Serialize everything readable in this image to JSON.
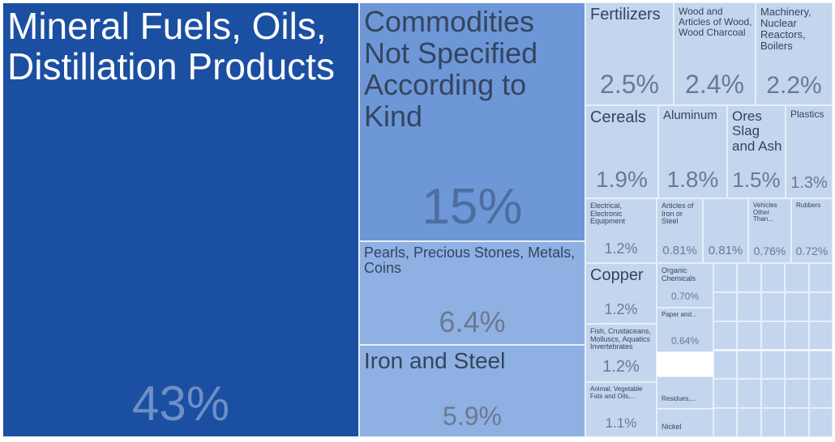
{
  "chart_data": {
    "type": "treemap",
    "categories": [
      "Mineral Fuels, Oils, Distillation Products",
      "Commodities Not Specified According to Kind",
      "Pearls, Precious Stones, Metals, Coins",
      "Iron and Steel",
      "Fertilizers",
      "Wood and Articles of Wood, Wood Charcoal",
      "Machinery, Nuclear Reactors, Boilers",
      "Cereals",
      "Aluminum",
      "Ores Slag and Ash",
      "Plastics",
      "Electrical, Electronic Equipment",
      "Articles of Iron or Steel",
      null,
      "Vehicles Other Than...",
      "Rubbers",
      "Copper",
      "Organic Chemicals",
      "Fish, Crustaceans, Molluscs, Aquatics Invertebrates",
      "Paper and...",
      "Animal, Vegetable Fats and Oils,...",
      "Residues,...",
      "Nickel"
    ],
    "values": [
      43,
      15,
      6.4,
      5.9,
      2.5,
      2.4,
      2.2,
      1.9,
      1.8,
      1.5,
      1.3,
      1.2,
      0.81,
      0.81,
      0.76,
      0.72,
      1.2,
      0.7,
      1.2,
      0.64,
      1.1,
      null,
      null
    ],
    "value_labels": [
      "43%",
      "15%",
      "6.4%",
      "5.9%",
      "2.5%",
      "2.4%",
      "2.2%",
      "1.9%",
      "1.8%",
      "1.5%",
      "1.3%",
      "1.2%",
      "0.81%",
      "0.81%",
      "0.76%",
      "0.72%",
      "1.2%",
      "0.70%",
      "1.2%",
      "0.64%",
      "1.1%",
      null,
      null
    ],
    "colors": [
      "#1b4fa2",
      "#6d97d7",
      "#8eb0e2",
      "#8eb0e2",
      "#c4d5ee",
      "#c4d5ee",
      "#c4d5ee",
      "#c4d5ee",
      "#c4d5ee",
      "#c4d5ee",
      "#c4d5ee",
      "#c4d5ee",
      "#c4d5ee",
      "#c4d5ee",
      "#c4d5ee",
      "#c4d5ee",
      "#c4d5ee",
      "#c4d5ee",
      "#c4d5ee",
      "#c4d5ee",
      "#c4d5ee",
      "#c4d5ee",
      "#c4d5ee"
    ]
  }
}
